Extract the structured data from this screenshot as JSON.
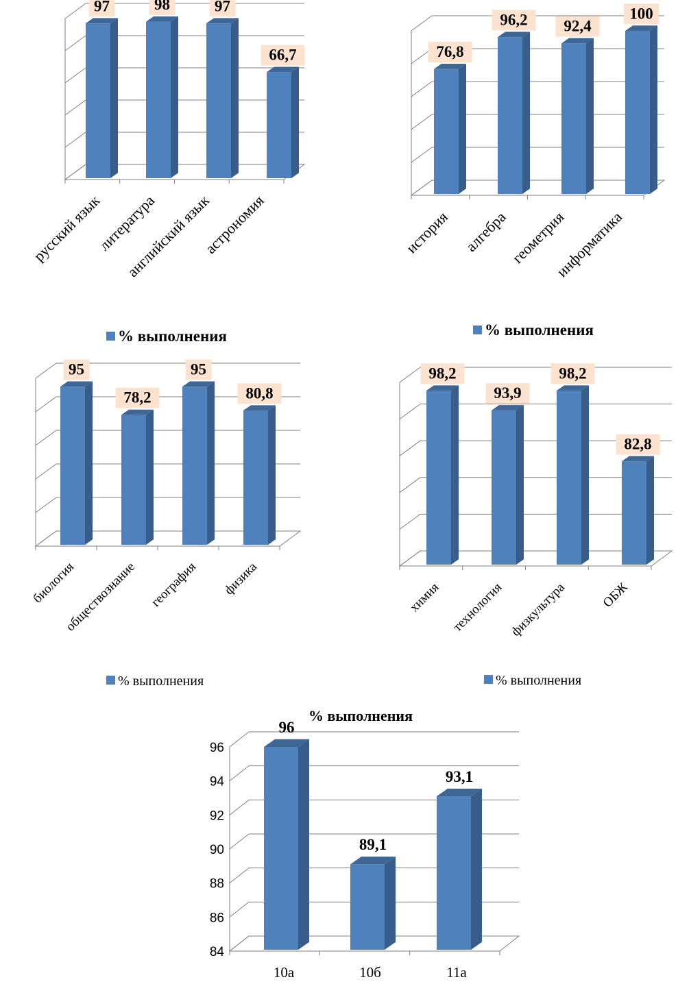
{
  "colors": {
    "bar_front": "#4f81bd",
    "bar_side": "#385d8a",
    "bar_top": "#3f6795",
    "label_bg": "#fbe3d0",
    "grid": "#7f7f7f"
  },
  "chart_data": [
    {
      "type": "bar",
      "categories": [
        "русский язык",
        "литература",
        "английский язык",
        "астрономия"
      ],
      "series": [
        {
          "name": "% выполнения",
          "values": [
            97,
            98,
            97,
            66.7
          ]
        }
      ],
      "value_labels": [
        "97",
        "98",
        "97",
        "66,7"
      ],
      "title": "",
      "ylim": [
        0,
        100
      ],
      "grid": true,
      "legend": "bottom"
    },
    {
      "type": "bar",
      "categories": [
        "история",
        "алгебра",
        "геометрия",
        "информатика"
      ],
      "series": [
        {
          "name": "% выполнения",
          "values": [
            76.8,
            96.2,
            92.4,
            100
          ]
        }
      ],
      "value_labels": [
        "76,8",
        "96,2",
        "92,4",
        "100"
      ],
      "title": "",
      "ylim": [
        0,
        100
      ],
      "grid": true,
      "legend": "bottom"
    },
    {
      "type": "bar",
      "categories": [
        "биология",
        "обществознание",
        "география",
        "физика"
      ],
      "series": [
        {
          "name": "% выполнения",
          "values": [
            95,
            78.2,
            95,
            80.8
          ]
        }
      ],
      "value_labels": [
        "95",
        "78,2",
        "95",
        "80,8"
      ],
      "title": "",
      "ylim": [
        0,
        100
      ],
      "grid": true,
      "legend": "bottom"
    },
    {
      "type": "bar",
      "categories": [
        "химия",
        "технология",
        "физкультура",
        "ОБЖ"
      ],
      "series": [
        {
          "name": "% выполнения",
          "values": [
            98.2,
            93.9,
            98.2,
            82.8
          ]
        }
      ],
      "value_labels": [
        "98,2",
        "93,9",
        "98,2",
        "82,8"
      ],
      "title": "",
      "ylim": [
        60,
        100
      ],
      "grid": true,
      "legend": "bottom"
    },
    {
      "type": "bar",
      "categories": [
        "10а",
        "10б",
        "11а"
      ],
      "series": [
        {
          "name": "% выполнения",
          "values": [
            96,
            89.1,
            93.1
          ]
        }
      ],
      "value_labels": [
        "96",
        "89,1",
        "93,1"
      ],
      "title": "% выполнения",
      "yticks": [
        "84",
        "86",
        "88",
        "90",
        "92",
        "94",
        "96"
      ],
      "ylim": [
        84,
        96
      ],
      "grid": true,
      "legend": "none"
    }
  ]
}
